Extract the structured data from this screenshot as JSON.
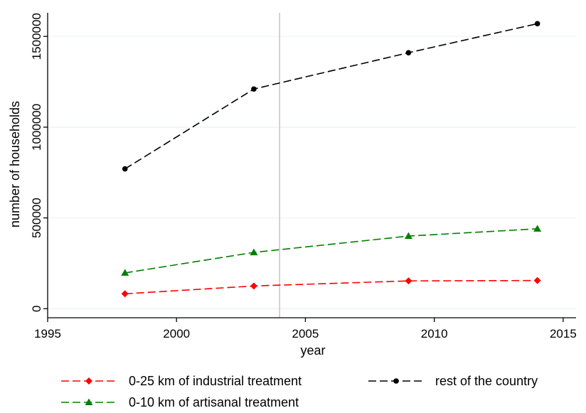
{
  "chart_data": {
    "type": "line",
    "xlabel": "year",
    "ylabel": "number of households",
    "xlim": [
      1995,
      2015.5
    ],
    "ylim": [
      -50000,
      1630000
    ],
    "x_ticks": [
      1995,
      2000,
      2005,
      2010,
      2015
    ],
    "y_ticks": [
      0,
      500000,
      1000000,
      1500000
    ],
    "x_tick_labels": [
      "1995",
      "2000",
      "2005",
      "2010",
      "2015"
    ],
    "y_tick_labels": [
      "0",
      "500000",
      "1000000",
      "1500000"
    ],
    "grid": true,
    "reference_line_x": 2004,
    "x": [
      1998,
      2003,
      2009,
      2014
    ],
    "series": [
      {
        "name": "0-25 km of industrial treatment",
        "values": [
          82000,
          125000,
          153000,
          155000
        ],
        "color": "#ff0000",
        "marker": "diamond"
      },
      {
        "name": "rest of the country",
        "values": [
          770000,
          1210000,
          1410000,
          1570000
        ],
        "color": "#000000",
        "marker": "circle"
      },
      {
        "name": "0-10 km of artisanal treatment",
        "values": [
          197000,
          310000,
          400000,
          440000
        ],
        "color": "#008000",
        "marker": "triangle"
      }
    ],
    "legend_position": "bottom"
  }
}
